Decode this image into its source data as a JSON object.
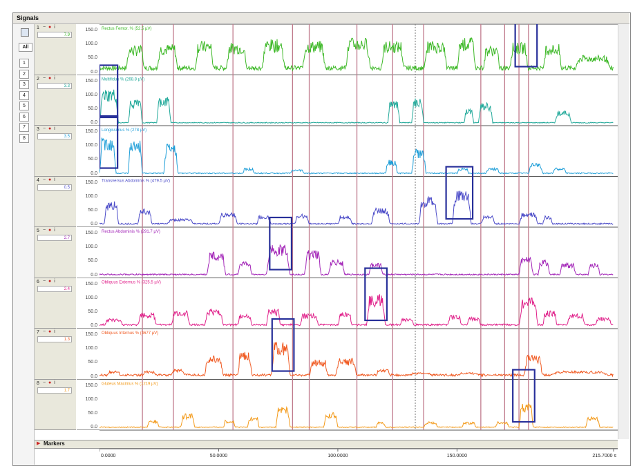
{
  "window": {
    "title": "Signals"
  },
  "sidebar": {
    "all_label": "All",
    "buttons": [
      "1",
      "2",
      "3",
      "4",
      "5",
      "6",
      "7",
      "8"
    ]
  },
  "markers": {
    "label": "Markers"
  },
  "colors": {
    "vline": "#c07a8c",
    "highlight_box": "#28309a",
    "dashed_marker": "#777777"
  },
  "chart_data": {
    "type": "line",
    "xlim": [
      0,
      215.7
    ],
    "x_ticks": [
      "0.0000",
      "50.0000",
      "100.0000",
      "150.0000",
      "215.7000 s"
    ],
    "x_tick_values": [
      0,
      50,
      100,
      150,
      215.7
    ],
    "y_ticks": [
      "150.0",
      "100.0",
      "50.0",
      "0.0"
    ],
    "y_tick_values": [
      150,
      100,
      50,
      0
    ],
    "ylim": [
      0,
      160
    ],
    "grid": false,
    "event_lines_x": [
      18,
      31,
      56,
      81,
      88,
      108,
      123,
      136,
      160,
      170,
      176,
      180
    ],
    "dashed_line_x": 132.5,
    "channels": [
      {
        "num": "1",
        "label": "Rectus Femor. % (52.5 µV)",
        "value": "7.9",
        "color": "#3cb826",
        "bursts": [
          [
            11,
            19,
            85
          ],
          [
            24,
            33,
            90
          ],
          [
            40,
            48,
            100
          ],
          [
            53,
            62,
            95
          ],
          [
            68,
            78,
            105
          ],
          [
            85,
            95,
            100
          ],
          [
            103,
            114,
            110
          ],
          [
            118,
            128,
            100
          ],
          [
            136,
            146,
            100
          ],
          [
            150,
            158,
            110
          ],
          [
            161,
            168,
            85
          ],
          [
            172,
            180,
            95
          ],
          [
            186,
            194,
            90
          ],
          [
            199,
            215,
            55
          ]
        ],
        "base": 22,
        "highlight": [
          175,
          183
        ]
      },
      {
        "num": "2",
        "label": "Multifidus % (268.8 µV)",
        "value": "3.3",
        "color": "#22a99a",
        "bursts": [
          [
            0,
            8,
            110
          ],
          [
            12,
            18,
            75
          ],
          [
            24,
            30,
            85
          ],
          [
            121,
            126,
            70
          ],
          [
            131,
            136,
            80
          ],
          [
            153,
            157,
            45
          ],
          [
            159,
            165,
            65
          ],
          [
            191,
            198,
            40
          ]
        ],
        "base": 4,
        "highlight": [
          0,
          7
        ]
      },
      {
        "num": "3",
        "label": "Longissimus % (278 µV)",
        "value": "3.5",
        "color": "#1e9ed8",
        "bursts": [
          [
            0,
            7,
            120
          ],
          [
            12,
            18,
            110
          ],
          [
            27,
            33,
            95
          ],
          [
            60,
            65,
            20
          ],
          [
            80,
            86,
            15
          ],
          [
            120,
            125,
            45
          ],
          [
            131,
            137,
            80
          ],
          [
            150,
            155,
            20
          ],
          [
            162,
            168,
            20
          ],
          [
            180,
            186,
            35
          ],
          [
            190,
            196,
            20
          ]
        ],
        "base": 5,
        "highlight": [
          0,
          7
        ]
      },
      {
        "num": "4",
        "label": "Transversus Abdominis % (479.5 µV)",
        "value": "0.5",
        "color": "#4a4ac8",
        "bursts": [
          [
            2,
            8,
            75
          ],
          [
            16,
            22,
            55
          ],
          [
            28,
            40,
            20
          ],
          [
            50,
            58,
            40
          ],
          [
            66,
            72,
            30
          ],
          [
            82,
            88,
            35
          ],
          [
            100,
            106,
            30
          ],
          [
            114,
            122,
            55
          ],
          [
            134,
            142,
            90
          ],
          [
            148,
            156,
            110
          ],
          [
            160,
            166,
            30
          ],
          [
            176,
            184,
            40
          ],
          [
            186,
            190,
            30
          ]
        ],
        "base": 6,
        "highlight": [
          146,
          156
        ]
      },
      {
        "num": "5",
        "label": "Rectus Abdominis % (291.7 µV)",
        "value": "2.7",
        "color": "#a326b8",
        "bursts": [
          [
            45,
            53,
            75
          ],
          [
            58,
            64,
            45
          ],
          [
            70,
            80,
            100
          ],
          [
            86,
            93,
            80
          ],
          [
            96,
            103,
            50
          ],
          [
            113,
            119,
            40
          ],
          [
            176,
            182,
            60
          ],
          [
            184,
            189,
            50
          ],
          [
            193,
            200,
            40
          ],
          [
            205,
            210,
            40
          ]
        ],
        "base": 6,
        "highlight": [
          72,
          80
        ]
      },
      {
        "num": "6",
        "label": "Obliquus Externus % (325.5 µV)",
        "value": "2.4",
        "color": "#e0208a",
        "bursts": [
          [
            2,
            10,
            25
          ],
          [
            16,
            24,
            45
          ],
          [
            30,
            38,
            50
          ],
          [
            44,
            52,
            55
          ],
          [
            58,
            64,
            40
          ],
          [
            70,
            76,
            55
          ],
          [
            84,
            92,
            40
          ],
          [
            100,
            106,
            45
          ],
          [
            112,
            120,
            100
          ],
          [
            126,
            132,
            25
          ],
          [
            146,
            152,
            35
          ],
          [
            154,
            160,
            30
          ],
          [
            176,
            184,
            90
          ],
          [
            186,
            192,
            50
          ],
          [
            196,
            204,
            40
          ],
          [
            208,
            215,
            30
          ]
        ],
        "base": 8,
        "highlight": [
          112,
          120
        ]
      },
      {
        "num": "7",
        "label": "Obliquus Internus % (4677 µV)",
        "value": "1.3",
        "color": "#f05a22",
        "bursts": [
          [
            3,
            9,
            20
          ],
          [
            18,
            24,
            20
          ],
          [
            30,
            36,
            25
          ],
          [
            44,
            52,
            70
          ],
          [
            58,
            64,
            80
          ],
          [
            72,
            80,
            110
          ],
          [
            88,
            96,
            55
          ],
          [
            99,
            108,
            60
          ],
          [
            116,
            122,
            25
          ],
          [
            130,
            140,
            15
          ],
          [
            150,
            160,
            15
          ],
          [
            178,
            186,
            70
          ],
          [
            188,
            215,
            20
          ]
        ],
        "base": 10,
        "highlight": [
          73,
          81
        ]
      },
      {
        "num": "8",
        "label": "Gluteus Maximus % (1219 µV)",
        "value": "1.7",
        "color": "#f39a1a",
        "bursts": [
          [
            20,
            25,
            25
          ],
          [
            34,
            40,
            45
          ],
          [
            52,
            57,
            25
          ],
          [
            62,
            67,
            35
          ],
          [
            74,
            80,
            70
          ],
          [
            94,
            100,
            50
          ],
          [
            116,
            120,
            20
          ],
          [
            136,
            142,
            20
          ],
          [
            152,
            158,
            20
          ],
          [
            166,
            172,
            20
          ],
          [
            176,
            182,
            80
          ],
          [
            204,
            210,
            35
          ]
        ],
        "base": 4,
        "highlight": [
          174,
          182
        ]
      }
    ]
  }
}
